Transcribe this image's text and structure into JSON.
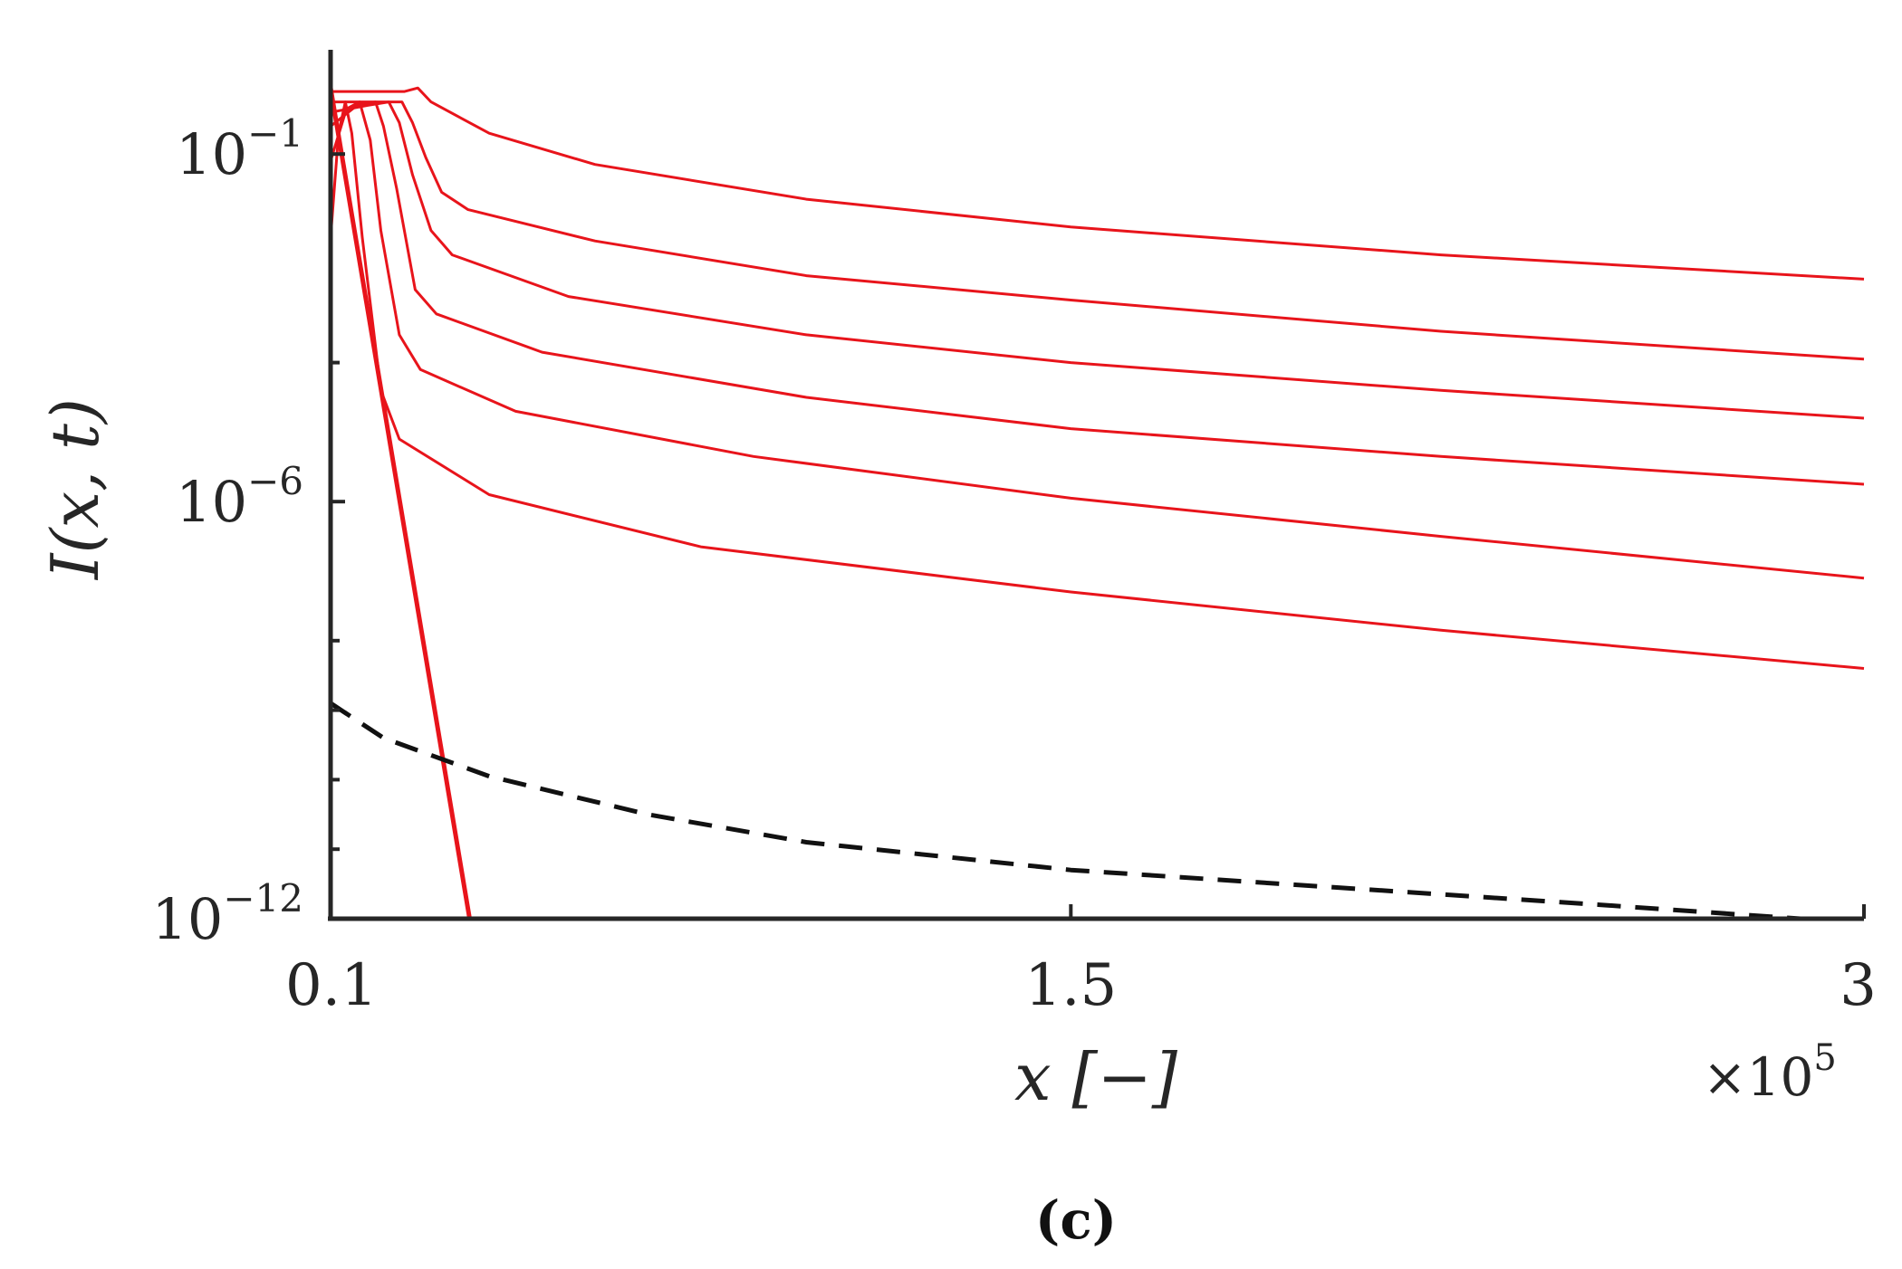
{
  "panel_label": "(c)",
  "chart_data": {
    "type": "line",
    "title": "",
    "xlabel": "x [−]",
    "ylabel": "I(x, t)",
    "x_multiplier_label": "×10",
    "x_multiplier_exponent": "5",
    "xlim": [
      0.1,
      3
    ],
    "ylim_log10": [
      -12,
      0
    ],
    "yscale": "log",
    "grid": false,
    "legend": "none",
    "x_ticks": [
      {
        "value": 0.1,
        "label": "0.1"
      },
      {
        "value": 1.5,
        "label": "1.5"
      },
      {
        "value": 3,
        "label": "3"
      }
    ],
    "y_ticks": [
      {
        "value": -1,
        "base": "10",
        "exp": "−1"
      },
      {
        "value": -6,
        "base": "10",
        "exp": "−6"
      },
      {
        "value": -12,
        "base": "10",
        "exp": "−12"
      }
    ],
    "y_minor_ticks": [
      -4,
      -8,
      -9,
      -10,
      -11
    ],
    "colors": {
      "solid": "#e8141b",
      "dashed": "#111111",
      "axis": "#262626"
    },
    "series": [
      {
        "style": "solid",
        "width": "thin",
        "points": [
          [
            0.1,
            -2.2
          ],
          [
            0.115,
            -0.7
          ],
          [
            0.128,
            -0.25
          ],
          [
            0.14,
            -0.7
          ],
          [
            0.16,
            -2.2
          ],
          [
            0.195,
            -4.4
          ],
          [
            0.23,
            -5.1
          ],
          [
            0.4,
            -5.9
          ],
          [
            0.8,
            -6.65
          ],
          [
            1.5,
            -7.3
          ],
          [
            2.2,
            -7.85
          ],
          [
            3.0,
            -8.4
          ]
        ]
      },
      {
        "style": "solid",
        "width": "thin",
        "points": [
          [
            0.1,
            -1.1
          ],
          [
            0.13,
            -0.35
          ],
          [
            0.155,
            -0.25
          ],
          [
            0.175,
            -0.8
          ],
          [
            0.195,
            -2.1
          ],
          [
            0.23,
            -3.6
          ],
          [
            0.27,
            -4.1
          ],
          [
            0.45,
            -4.7
          ],
          [
            0.9,
            -5.35
          ],
          [
            1.5,
            -5.95
          ],
          [
            2.2,
            -6.5
          ],
          [
            3.0,
            -7.1
          ]
        ]
      },
      {
        "style": "solid",
        "width": "thin",
        "points": [
          [
            0.1,
            -0.6
          ],
          [
            0.15,
            -0.3
          ],
          [
            0.185,
            -0.25
          ],
          [
            0.2,
            -0.6
          ],
          [
            0.225,
            -1.5
          ],
          [
            0.26,
            -2.95
          ],
          [
            0.3,
            -3.3
          ],
          [
            0.5,
            -3.85
          ],
          [
            1.0,
            -4.5
          ],
          [
            1.5,
            -4.95
          ],
          [
            2.2,
            -5.35
          ],
          [
            3.0,
            -5.75
          ]
        ]
      },
      {
        "style": "solid",
        "width": "thin",
        "points": [
          [
            0.1,
            -0.4
          ],
          [
            0.17,
            -0.3
          ],
          [
            0.21,
            -0.25
          ],
          [
            0.23,
            -0.55
          ],
          [
            0.255,
            -1.3
          ],
          [
            0.29,
            -2.1
          ],
          [
            0.33,
            -2.45
          ],
          [
            0.55,
            -3.05
          ],
          [
            1.0,
            -3.6
          ],
          [
            1.5,
            -4.0
          ],
          [
            2.2,
            -4.4
          ],
          [
            3.0,
            -4.8
          ]
        ]
      },
      {
        "style": "solid",
        "width": "thin",
        "points": [
          [
            0.1,
            -0.25
          ],
          [
            0.2,
            -0.25
          ],
          [
            0.235,
            -0.25
          ],
          [
            0.255,
            -0.55
          ],
          [
            0.28,
            -1.05
          ],
          [
            0.31,
            -1.55
          ],
          [
            0.36,
            -1.8
          ],
          [
            0.6,
            -2.25
          ],
          [
            1.0,
            -2.75
          ],
          [
            1.5,
            -3.1
          ],
          [
            2.2,
            -3.55
          ],
          [
            3.0,
            -3.95
          ]
        ]
      },
      {
        "style": "solid",
        "width": "thin",
        "points": [
          [
            0.1,
            -0.1
          ],
          [
            0.24,
            -0.1
          ],
          [
            0.265,
            -0.05
          ],
          [
            0.29,
            -0.25
          ],
          [
            0.4,
            -0.7
          ],
          [
            0.6,
            -1.15
          ],
          [
            1.0,
            -1.65
          ],
          [
            1.5,
            -2.05
          ],
          [
            2.2,
            -2.45
          ],
          [
            3.0,
            -2.8
          ]
        ]
      },
      {
        "style": "solid",
        "width": "thick",
        "points": [
          [
            0.1,
            -0.05
          ],
          [
            0.363,
            -12
          ]
        ]
      },
      {
        "style": "dashed",
        "width": "thick",
        "points": [
          [
            0.1,
            -8.9
          ],
          [
            0.2,
            -9.4
          ],
          [
            0.4,
            -9.95
          ],
          [
            0.7,
            -10.5
          ],
          [
            1.0,
            -10.9
          ],
          [
            1.5,
            -11.3
          ],
          [
            2.0,
            -11.55
          ],
          [
            2.5,
            -11.8
          ],
          [
            2.88,
            -12
          ]
        ]
      }
    ]
  }
}
